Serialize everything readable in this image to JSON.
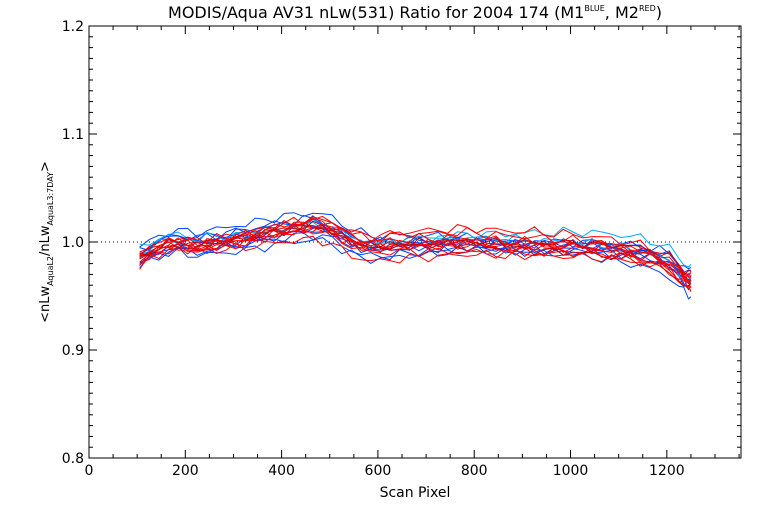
{
  "chart_data": {
    "type": "line",
    "title": {
      "main": "MODIS/Aqua AV31 nLw(531) Ratio for 2004 174 (M1",
      "sup1": "BLUE",
      "mid": ", M2",
      "sup2": "RED",
      "end": ")"
    },
    "xlabel": "Scan Pixel",
    "ylabel": {
      "open": "<nLw",
      "sub1": "AquaL2",
      "mid": "/nLw",
      "sub2": "AquaL3:7DAY",
      "close": ">"
    },
    "xlim": [
      0,
      1354
    ],
    "ylim": [
      0.8,
      1.2
    ],
    "xticks": [
      0,
      200,
      400,
      600,
      800,
      1000,
      1200
    ],
    "xtick_labels": [
      "0",
      "200",
      "400",
      "600",
      "800",
      "1000",
      "1200"
    ],
    "yticks": [
      0.8,
      0.9,
      1.0,
      1.1,
      1.2
    ],
    "ytick_labels": [
      "0.8",
      "0.9",
      "1.0",
      "1.1",
      "1.2"
    ],
    "reference_line": 1.0,
    "x": [
      105,
      125,
      145,
      165,
      185,
      205,
      225,
      245,
      265,
      285,
      305,
      325,
      345,
      365,
      385,
      405,
      425,
      445,
      465,
      485,
      505,
      525,
      545,
      565,
      585,
      605,
      625,
      645,
      665,
      685,
      705,
      725,
      745,
      765,
      785,
      805,
      825,
      845,
      865,
      885,
      905,
      925,
      945,
      965,
      985,
      1005,
      1025,
      1045,
      1065,
      1085,
      1105,
      1125,
      1145,
      1165,
      1185,
      1205,
      1225,
      1235,
      1245,
      1250
    ],
    "baseline": [
      0.985,
      0.99,
      0.994,
      0.998,
      0.999,
      0.997,
      0.996,
      0.998,
      0.999,
      1.0,
      1.002,
      1.003,
      1.005,
      1.007,
      1.009,
      1.01,
      1.012,
      1.013,
      1.014,
      1.013,
      1.01,
      1.005,
      1.0,
      0.997,
      0.995,
      0.995,
      0.996,
      0.997,
      0.997,
      0.998,
      0.998,
      0.998,
      0.999,
      0.999,
      0.999,
      0.999,
      0.998,
      0.998,
      0.997,
      0.997,
      0.997,
      0.997,
      0.996,
      0.996,
      0.996,
      0.996,
      0.995,
      0.995,
      0.994,
      0.993,
      0.992,
      0.991,
      0.989,
      0.987,
      0.984,
      0.98,
      0.972,
      0.967,
      0.964,
      0.965
    ],
    "series": [
      {
        "color": "#0044ff",
        "offset": 0.012,
        "tilt": -0.01
      },
      {
        "color": "#0044ff",
        "offset": 0.008,
        "tilt": 0.004
      },
      {
        "color": "#0044ff",
        "offset": 0.004,
        "tilt": -0.004
      },
      {
        "color": "#0044ff",
        "offset": 0.0,
        "tilt": 0.008
      },
      {
        "color": "#0044ff",
        "offset": -0.004,
        "tilt": -0.006
      },
      {
        "color": "#0044ff",
        "offset": -0.008,
        "tilt": 0.006
      },
      {
        "color": "#0044ff",
        "offset": -0.012,
        "tilt": 0.0
      },
      {
        "color": "#0044ff",
        "offset": 0.01,
        "tilt": 0.01
      },
      {
        "color": "#0044ff",
        "offset": -0.01,
        "tilt": -0.012
      },
      {
        "color": "#00aaff",
        "offset": 0.014,
        "tilt": 0.002
      },
      {
        "color": "#00aaff",
        "offset": 0.006,
        "tilt": -0.008
      },
      {
        "color": "#ff0000",
        "offset": 0.01,
        "tilt": -0.004
      },
      {
        "color": "#ff0000",
        "offset": 0.006,
        "tilt": 0.006
      },
      {
        "color": "#ff0000",
        "offset": 0.002,
        "tilt": -0.01
      },
      {
        "color": "#ff0000",
        "offset": -0.002,
        "tilt": 0.01
      },
      {
        "color": "#ff0000",
        "offset": -0.006,
        "tilt": -0.002
      },
      {
        "color": "#ff0000",
        "offset": -0.01,
        "tilt": 0.004
      },
      {
        "color": "#ff0000",
        "offset": 0.013,
        "tilt": 0.008
      },
      {
        "color": "#ff0000",
        "offset": -0.013,
        "tilt": -0.006
      },
      {
        "color": "#ff0000",
        "offset": 0.0,
        "tilt": 0.0
      },
      {
        "color": "#cc0000",
        "offset": 0.004,
        "tilt": 0.012
      },
      {
        "color": "#cc0000",
        "offset": -0.004,
        "tilt": -0.014
      }
    ]
  }
}
